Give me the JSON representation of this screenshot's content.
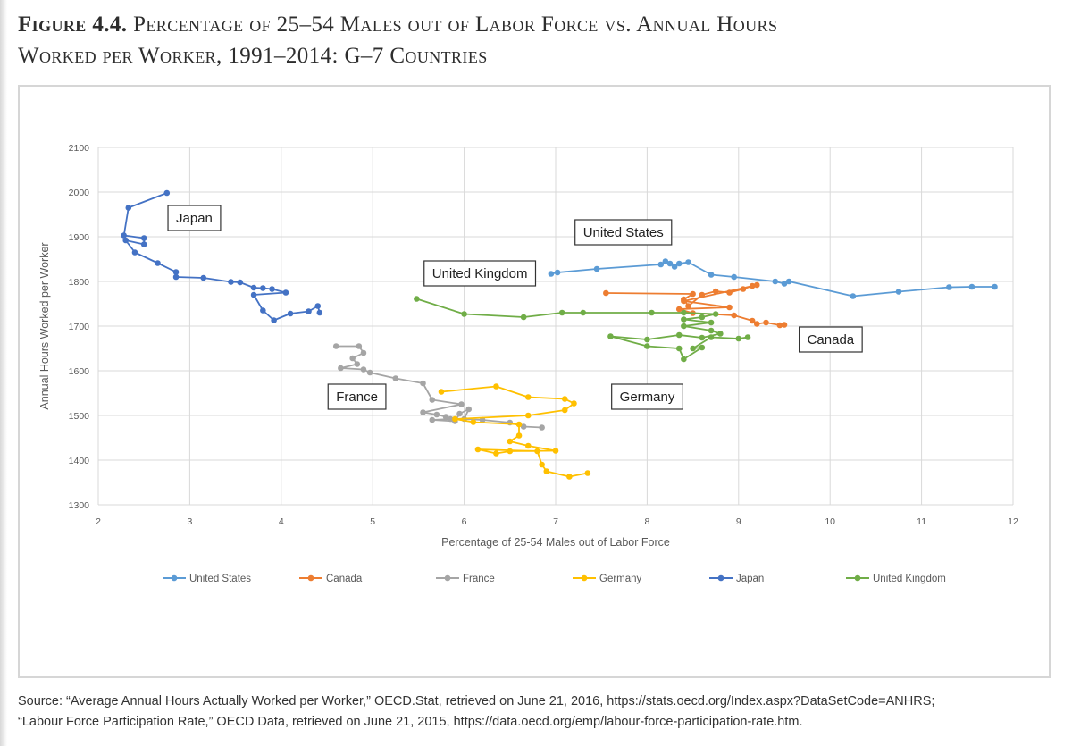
{
  "figure": {
    "number": "Figure 4.4.",
    "title_line1": "Percentage of 25–54 Males out of Labor Force vs. Annual Hours",
    "title_line2": "Worked per Worker, 1991–2014: G–7 Countries"
  },
  "source": {
    "line1": "Source: “Average Annual Hours Actually Worked per Worker,” OECD.Stat, retrieved on June 21, 2016, https://stats.oecd.org/Index.aspx?DataSetCode=ANHRS;",
    "line2": "“Labour Force Participation Rate,” OECD Data, retrieved on June 21, 2015, https://data.oecd.org/emp/labour-force-participation-rate.htm."
  },
  "chart_data": {
    "type": "line",
    "xlabel": "Percentage of 25-54 Males out of Labor Force",
    "ylabel": "Annual Hours Worked per Worker",
    "xlim": [
      2,
      12
    ],
    "ylim": [
      1300,
      2100
    ],
    "xticks": [
      2,
      3,
      4,
      5,
      6,
      7,
      8,
      9,
      10,
      11,
      12
    ],
    "yticks": [
      1300,
      1400,
      1500,
      1600,
      1700,
      1800,
      1900,
      2000,
      2100
    ],
    "grid": true,
    "legend_position": "bottom",
    "series": [
      {
        "name": "United States",
        "color": "#5b9bd5",
        "label": "United States",
        "label_at": [
          7.3,
          1900
        ],
        "points": [
          [
            6.95,
            1817
          ],
          [
            7.02,
            1820
          ],
          [
            7.45,
            1828
          ],
          [
            8.15,
            1838
          ],
          [
            8.2,
            1845
          ],
          [
            8.25,
            1840
          ],
          [
            8.3,
            1833
          ],
          [
            8.35,
            1840
          ],
          [
            8.45,
            1843
          ],
          [
            8.7,
            1815
          ],
          [
            8.95,
            1810
          ],
          [
            9.4,
            1800
          ],
          [
            9.5,
            1795
          ],
          [
            9.55,
            1800
          ],
          [
            10.25,
            1767
          ],
          [
            10.75,
            1777
          ],
          [
            11.3,
            1787
          ],
          [
            11.55,
            1788
          ],
          [
            11.8,
            1788
          ]
        ]
      },
      {
        "name": "Canada",
        "color": "#ed7d31",
        "label": "Canada",
        "label_at": [
          9.75,
          1660
        ],
        "points": [
          [
            7.55,
            1774
          ],
          [
            8.5,
            1772
          ],
          [
            8.4,
            1760
          ],
          [
            8.45,
            1745
          ],
          [
            8.6,
            1770
          ],
          [
            8.75,
            1778
          ],
          [
            8.9,
            1775
          ],
          [
            9.05,
            1783
          ],
          [
            9.15,
            1790
          ],
          [
            9.2,
            1792
          ],
          [
            8.4,
            1756
          ],
          [
            8.9,
            1742
          ],
          [
            8.35,
            1738
          ],
          [
            8.5,
            1729
          ],
          [
            8.95,
            1724
          ],
          [
            9.15,
            1712
          ],
          [
            9.2,
            1705
          ],
          [
            9.3,
            1708
          ],
          [
            9.45,
            1702
          ],
          [
            9.5,
            1703
          ]
        ]
      },
      {
        "name": "France",
        "color": "#a5a5a5",
        "label": "France",
        "label_at": [
          4.6,
          1532
        ],
        "points": [
          [
            4.6,
            1655
          ],
          [
            4.85,
            1655
          ],
          [
            4.9,
            1640
          ],
          [
            4.78,
            1628
          ],
          [
            4.83,
            1615
          ],
          [
            4.65,
            1606
          ],
          [
            4.9,
            1603
          ],
          [
            4.97,
            1596
          ],
          [
            5.25,
            1583
          ],
          [
            5.55,
            1572
          ],
          [
            5.65,
            1535
          ],
          [
            5.97,
            1525
          ],
          [
            5.55,
            1507
          ],
          [
            5.7,
            1502
          ],
          [
            5.8,
            1497
          ],
          [
            5.85,
            1492
          ],
          [
            5.65,
            1490
          ],
          [
            5.9,
            1487
          ],
          [
            5.95,
            1504
          ],
          [
            6.05,
            1514
          ],
          [
            6.0,
            1492
          ],
          [
            6.2,
            1490
          ],
          [
            6.5,
            1484
          ],
          [
            6.65,
            1475
          ],
          [
            6.85,
            1473
          ]
        ]
      },
      {
        "name": "Germany",
        "color": "#ffc000",
        "label": "Germany",
        "label_at": [
          7.7,
          1532
        ],
        "points": [
          [
            5.75,
            1553
          ],
          [
            6.35,
            1565
          ],
          [
            6.7,
            1541
          ],
          [
            7.1,
            1537
          ],
          [
            7.2,
            1527
          ],
          [
            7.1,
            1512
          ],
          [
            6.7,
            1500
          ],
          [
            5.9,
            1492
          ],
          [
            6.1,
            1485
          ],
          [
            6.6,
            1480
          ],
          [
            6.6,
            1455
          ],
          [
            6.5,
            1442
          ],
          [
            6.7,
            1432
          ],
          [
            7.0,
            1421
          ],
          [
            6.5,
            1420
          ],
          [
            6.35,
            1415
          ],
          [
            6.15,
            1424
          ],
          [
            6.8,
            1420
          ],
          [
            6.85,
            1390
          ],
          [
            6.9,
            1375
          ],
          [
            7.15,
            1363
          ],
          [
            7.35,
            1371
          ]
        ]
      },
      {
        "name": "Japan",
        "color": "#4472c4",
        "label": "Japan",
        "label_at": [
          2.85,
          1932
        ],
        "points": [
          [
            2.75,
            1998
          ],
          [
            2.33,
            1965
          ],
          [
            2.28,
            1903
          ],
          [
            2.5,
            1897
          ],
          [
            2.5,
            1883
          ],
          [
            2.3,
            1892
          ],
          [
            2.4,
            1865
          ],
          [
            2.65,
            1841
          ],
          [
            2.85,
            1821
          ],
          [
            2.85,
            1810
          ],
          [
            3.15,
            1808
          ],
          [
            3.45,
            1799
          ],
          [
            3.55,
            1798
          ],
          [
            3.7,
            1786
          ],
          [
            3.8,
            1785
          ],
          [
            3.9,
            1783
          ],
          [
            4.05,
            1775
          ],
          [
            3.7,
            1770
          ],
          [
            3.8,
            1735
          ],
          [
            3.92,
            1713
          ],
          [
            4.1,
            1728
          ],
          [
            4.3,
            1733
          ],
          [
            4.4,
            1745
          ],
          [
            4.42,
            1730
          ]
        ]
      },
      {
        "name": "United Kingdom",
        "color": "#70ad47",
        "label": "United Kingdom",
        "label_at": [
          5.65,
          1808
        ],
        "points": [
          [
            5.48,
            1761
          ],
          [
            6.0,
            1727
          ],
          [
            6.65,
            1720
          ],
          [
            7.07,
            1730
          ],
          [
            7.3,
            1730
          ],
          [
            8.05,
            1730
          ],
          [
            8.4,
            1730
          ],
          [
            8.75,
            1727
          ],
          [
            8.6,
            1720
          ],
          [
            8.4,
            1715
          ],
          [
            8.7,
            1708
          ],
          [
            8.4,
            1700
          ],
          [
            8.7,
            1690
          ],
          [
            8.8,
            1683
          ],
          [
            8.6,
            1674
          ],
          [
            8.35,
            1680
          ],
          [
            8.0,
            1670
          ],
          [
            7.6,
            1677
          ],
          [
            8.0,
            1655
          ],
          [
            8.35,
            1650
          ],
          [
            8.4,
            1626
          ],
          [
            8.6,
            1652
          ],
          [
            8.5,
            1650
          ],
          [
            8.7,
            1675
          ],
          [
            9.0,
            1672
          ],
          [
            9.1,
            1675
          ]
        ]
      }
    ]
  }
}
